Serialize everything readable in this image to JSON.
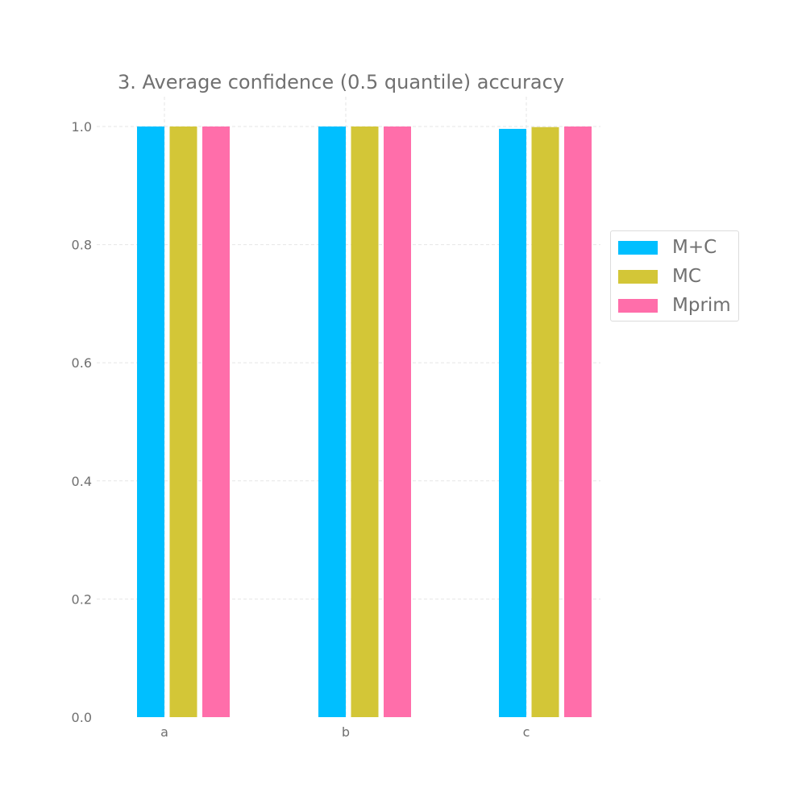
{
  "chart_data": {
    "type": "bar",
    "title": "3. Average confidence (0.5 quantile) accuracy",
    "xlabel": "",
    "ylabel": "",
    "categories": [
      "a",
      "b",
      "c"
    ],
    "series": [
      {
        "name": "M+C",
        "color": "#00bfff",
        "values": [
          1.0,
          1.0,
          0.996
        ]
      },
      {
        "name": "MC",
        "color": "#d3c637",
        "values": [
          1.0,
          1.0,
          0.999
        ]
      },
      {
        "name": "Mprim",
        "color": "#ff6eaa",
        "values": [
          1.0,
          1.0,
          1.0
        ]
      }
    ],
    "ylim": [
      0,
      1.05
    ],
    "yticks": [
      "0.0",
      "0.2",
      "0.4",
      "0.6",
      "0.8",
      "1.0"
    ],
    "grid": true,
    "legend_position": "right"
  }
}
